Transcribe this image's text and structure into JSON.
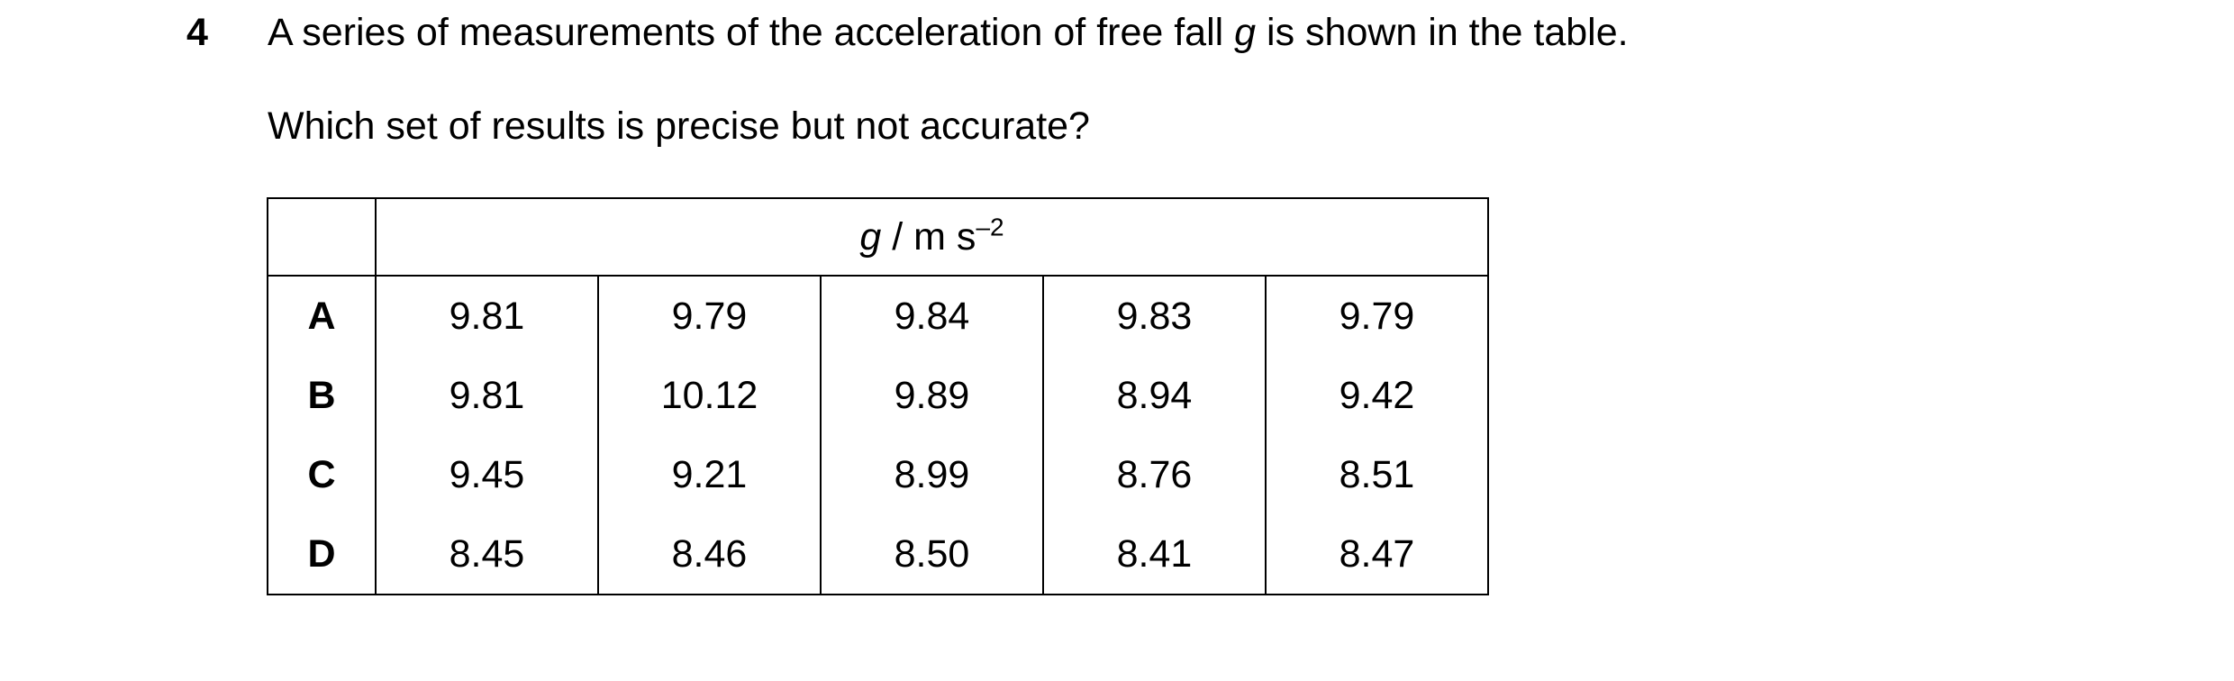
{
  "question": {
    "number": "4",
    "stem_prefix": "A series of measurements of the acceleration of free fall ",
    "stem_symbol": "g",
    "stem_suffix": " is shown in the table.",
    "prompt": "Which set of results is precise but not accurate?"
  },
  "table": {
    "header": {
      "symbol": "g",
      "unit_text": " / m s",
      "unit_exponent": "–2"
    },
    "rows": [
      {
        "label": "A",
        "values": [
          "9.81",
          "9.79",
          "9.84",
          "9.83",
          "9.79"
        ]
      },
      {
        "label": "B",
        "values": [
          "9.81",
          "10.12",
          "9.89",
          "8.94",
          "9.42"
        ]
      },
      {
        "label": "C",
        "values": [
          "9.45",
          "9.21",
          "8.99",
          "8.76",
          "8.51"
        ]
      },
      {
        "label": "D",
        "values": [
          "8.45",
          "8.46",
          "8.50",
          "8.41",
          "8.47"
        ]
      }
    ]
  }
}
